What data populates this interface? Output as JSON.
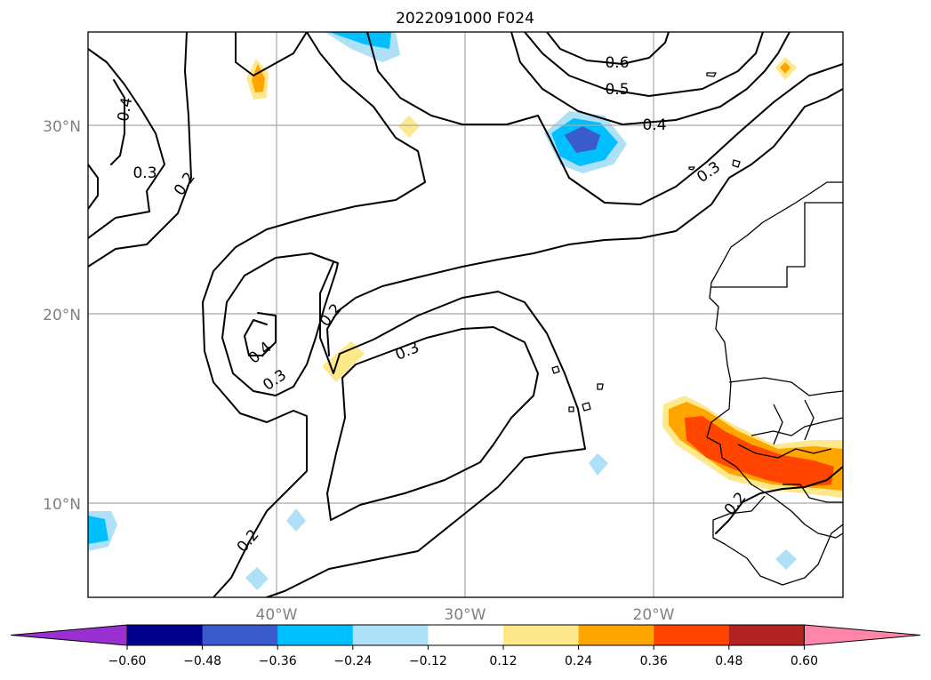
{
  "title": "2022091000 F024",
  "lat_labels": [
    "30°N",
    "20°N",
    "10°N"
  ],
  "lon_labels": [
    "40°W",
    "30°W",
    "20°W"
  ],
  "contour_labels": [
    "0.6",
    "0.5",
    "0.4",
    "0.4",
    "0.3",
    "0.2",
    "0.3",
    "0.2",
    "0.4",
    "0.3",
    "0.3",
    "0.2",
    "0.2"
  ],
  "colorbar": {
    "ticks": [
      "−0.60",
      "−0.48",
      "−0.36",
      "−0.24",
      "−0.12",
      "0.12",
      "0.24",
      "0.36",
      "0.48",
      "0.60"
    ],
    "colors": {
      "under": "#9b30d0",
      "bins": [
        "#00008b",
        "#3a5bcc",
        "#00bfff",
        "#aee0f8",
        "#ffffff",
        "#fde88c",
        "#ffa500",
        "#ff4500",
        "#b22222"
      ],
      "over": "#ff86a8"
    }
  }
}
